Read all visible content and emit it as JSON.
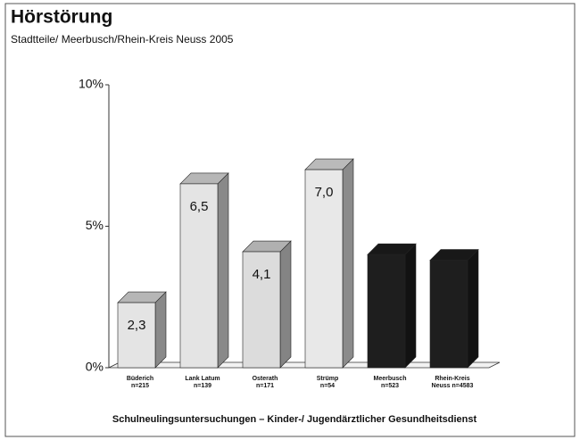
{
  "chart_data": {
    "type": "bar3d",
    "title": "Hörstörung",
    "subtitle": "Stadtteile/ Meerbusch/Rhein-Kreis Neuss   2005",
    "footer": "Schulneulingsuntersuchungen  –  Kinder-/ Jugendärztlicher Gesundheitsdienst",
    "categories": [
      "Büderich\nn=215",
      "Lank Latum\nn=139",
      "Osterath\nn=171",
      "Strümp\nn=54",
      "Meerbusch\nn=523",
      "Rhein-Kreis\nNeuss n=4583"
    ],
    "values": [
      2.3,
      6.5,
      4.1,
      7.0,
      4.0,
      3.8
    ],
    "value_labels": [
      "2,3",
      "6,5",
      "4,1",
      "7,0",
      null,
      null
    ],
    "colors": [
      "#e4e4e4",
      "#e4e4e4",
      "#dcdcdc",
      "#e8e8e8",
      "#1e1e1e",
      "#1e1e1e"
    ],
    "ylim": [
      0,
      10
    ],
    "yticks": [
      {
        "value": 0,
        "label": "0%"
      },
      {
        "value": 5,
        "label": "5%"
      },
      {
        "value": 10,
        "label": "10%"
      }
    ]
  }
}
